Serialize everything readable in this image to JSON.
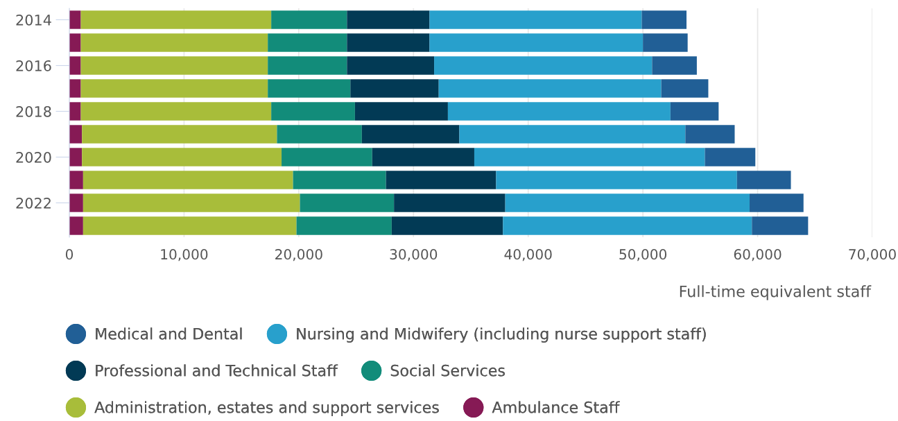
{
  "chart_data": {
    "type": "bar",
    "orientation": "horizontal",
    "stacked": true,
    "categories": [
      "2014",
      null,
      "2016",
      null,
      "2018",
      null,
      "2020",
      null,
      "2022",
      null
    ],
    "xlabel": "Full-time equivalent staff",
    "xlim": [
      0,
      70000
    ],
    "xticks": [
      {
        "value": 0,
        "label": "0"
      },
      {
        "value": 10000,
        "label": "10,000"
      },
      {
        "value": 20000,
        "label": "20,000"
      },
      {
        "value": 30000,
        "label": "30,000"
      },
      {
        "value": 40000,
        "label": "40,000"
      },
      {
        "value": 50000,
        "label": "50,000"
      },
      {
        "value": 60000,
        "label": "60,000"
      },
      {
        "value": 70000,
        "label": "70,000"
      }
    ],
    "grid": "x",
    "legend": "bottom",
    "series": [
      {
        "name": "Ambulance Staff",
        "color": "#861a55",
        "values": [
          1000,
          1000,
          1000,
          1000,
          1000,
          1100,
          1100,
          1200,
          1200,
          1200
        ]
      },
      {
        "name": "Administration, estates and support services",
        "color": "#a8bd3a",
        "values": [
          16600,
          16300,
          16300,
          16300,
          16600,
          17000,
          17400,
          18300,
          18900,
          18600
        ]
      },
      {
        "name": "Social Services",
        "color": "#128c7a",
        "values": [
          6600,
          6900,
          6900,
          7200,
          7300,
          7400,
          7900,
          8100,
          8200,
          8300
        ]
      },
      {
        "name": "Professional and Technical Staff",
        "color": "#023a55",
        "values": [
          7200,
          7200,
          7600,
          7700,
          8100,
          8500,
          8900,
          9600,
          9700,
          9700
        ]
      },
      {
        "name": "Nursing and Midwifery (including nurse support staff)",
        "color": "#28a0cc",
        "values": [
          18500,
          18600,
          19000,
          19400,
          19400,
          19700,
          20100,
          21000,
          21300,
          21700
        ]
      },
      {
        "name": "Medical and Dental",
        "color": "#215f96",
        "values": [
          3900,
          3900,
          3900,
          4100,
          4200,
          4300,
          4400,
          4700,
          4700,
          4900
        ]
      }
    ]
  }
}
